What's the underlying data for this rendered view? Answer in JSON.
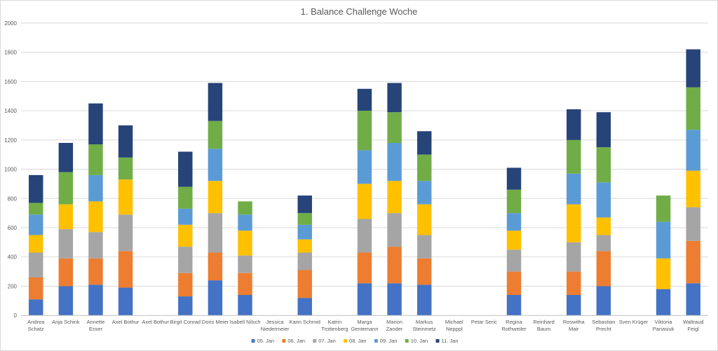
{
  "chart_data": {
    "type": "bar",
    "stacked": true,
    "title": "1. Balance Challenge Woche",
    "xlabel": "",
    "ylabel": "",
    "ylim": [
      0,
      2000
    ],
    "yticks": [
      0,
      200,
      400,
      600,
      800,
      1000,
      1200,
      1400,
      1600,
      1800,
      2000
    ],
    "grid": true,
    "legend_position": "bottom",
    "categories": [
      [
        "Andrea",
        "Schatz"
      ],
      [
        "Anja Schink"
      ],
      [
        "Annette",
        "Esser"
      ],
      [
        "Axel Bothur"
      ],
      [
        "Axel Bothur"
      ],
      [
        "Birgit Conrad"
      ],
      [
        "Doris Meier"
      ],
      [
        "Isabell Nilsch"
      ],
      [
        "Jessica",
        "Niedermeier"
      ],
      [
        "Karin Schmid"
      ],
      [
        "Katrin",
        "Trottenberg"
      ],
      [
        "Marga",
        "Gentemann"
      ],
      [
        "Marion",
        "Zander"
      ],
      [
        "Markus",
        "Steinmetz"
      ],
      [
        "Michael",
        "Nepppl"
      ],
      [
        "Petar Seric"
      ],
      [
        "Regina",
        "Rothweiler"
      ],
      [
        "Reinhard",
        "Baum"
      ],
      [
        "Roswitha",
        "Mair"
      ],
      [
        "Sebastian",
        "Precht"
      ],
      [
        "Sven Krüger"
      ],
      [
        "Viktoria",
        "Panasiuk"
      ],
      [
        "Waltraud",
        "Feigl"
      ]
    ],
    "series": [
      {
        "name": "05. Jan",
        "color": "#4472c4",
        "values": [
          110,
          200,
          210,
          190,
          0,
          130,
          240,
          140,
          0,
          120,
          0,
          220,
          220,
          210,
          0,
          0,
          140,
          0,
          140,
          200,
          0,
          180,
          220
        ]
      },
      {
        "name": "06. Jan",
        "color": "#ed7d31",
        "values": [
          150,
          190,
          180,
          250,
          0,
          160,
          190,
          150,
          0,
          190,
          0,
          210,
          250,
          180,
          0,
          0,
          160,
          0,
          160,
          240,
          0,
          0,
          290
        ]
      },
      {
        "name": "07. Jan",
        "color": "#a5a5a5",
        "values": [
          170,
          200,
          180,
          250,
          0,
          180,
          270,
          120,
          0,
          120,
          0,
          230,
          230,
          160,
          0,
          0,
          150,
          0,
          200,
          110,
          0,
          0,
          230
        ]
      },
      {
        "name": "08. Jan",
        "color": "#ffc000",
        "values": [
          120,
          170,
          210,
          240,
          0,
          150,
          220,
          170,
          0,
          90,
          0,
          240,
          220,
          210,
          0,
          0,
          130,
          0,
          260,
          120,
          0,
          210,
          250
        ]
      },
      {
        "name": "09. Jan",
        "color": "#5b9bd5",
        "values": [
          140,
          0,
          180,
          0,
          0,
          110,
          220,
          110,
          0,
          100,
          0,
          230,
          260,
          160,
          0,
          0,
          120,
          0,
          210,
          240,
          0,
          250,
          280
        ]
      },
      {
        "name": "10. Jan",
        "color": "#70ad47",
        "values": [
          80,
          220,
          210,
          150,
          0,
          150,
          190,
          90,
          0,
          80,
          0,
          270,
          210,
          180,
          0,
          0,
          160,
          0,
          230,
          240,
          0,
          180,
          290
        ]
      },
      {
        "name": "11. Jan",
        "color": "#264478",
        "values": [
          190,
          200,
          280,
          220,
          0,
          240,
          260,
          0,
          0,
          120,
          0,
          150,
          200,
          160,
          0,
          0,
          150,
          0,
          210,
          240,
          0,
          0,
          260
        ]
      }
    ]
  }
}
